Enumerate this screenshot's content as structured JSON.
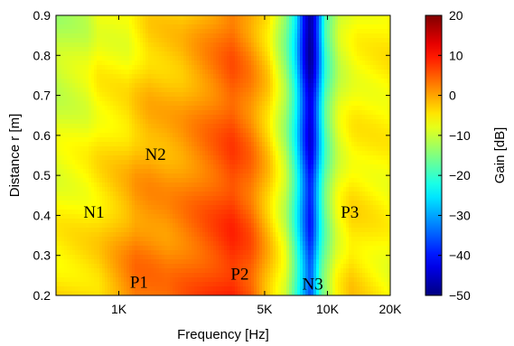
{
  "chart_data": {
    "type": "heatmap",
    "title": "",
    "xlabel": "Frequency [Hz]",
    "ylabel": "Distance r [m]",
    "colorbar_label": "Gain [dB]",
    "x_scale": "log",
    "xlim": [
      500,
      20000
    ],
    "ylim": [
      0.2,
      0.9
    ],
    "x_ticks": [
      {
        "value": 1000,
        "label": "1K"
      },
      {
        "value": 5000,
        "label": "5K"
      },
      {
        "value": 10000,
        "label": "10K"
      },
      {
        "value": 20000,
        "label": "20K"
      }
    ],
    "y_ticks": [
      {
        "value": 0.2,
        "label": "0.2"
      },
      {
        "value": 0.3,
        "label": "0.3"
      },
      {
        "value": 0.4,
        "label": "0.4"
      },
      {
        "value": 0.5,
        "label": "0.5"
      },
      {
        "value": 0.6,
        "label": "0.6"
      },
      {
        "value": 0.7,
        "label": "0.7"
      },
      {
        "value": 0.8,
        "label": "0.8"
      },
      {
        "value": 0.9,
        "label": "0.9"
      }
    ],
    "colorbar_range": [
      -50,
      20
    ],
    "colorbar_ticks": [
      {
        "value": 20,
        "label": "20"
      },
      {
        "value": 10,
        "label": "10"
      },
      {
        "value": 0,
        "label": "0"
      },
      {
        "value": -10,
        "label": "−10"
      },
      {
        "value": -20,
        "label": "−20"
      },
      {
        "value": -30,
        "label": "−30"
      },
      {
        "value": -40,
        "label": "−40"
      },
      {
        "value": -50,
        "label": "−50"
      }
    ],
    "colormap": "jet",
    "gain_profile_at_r_0_9": [
      {
        "freq": 500,
        "gain": -12
      },
      {
        "freq": 700,
        "gain": -10
      },
      {
        "freq": 800,
        "gain": -7
      },
      {
        "freq": 1100,
        "gain": -8
      },
      {
        "freq": 1400,
        "gain": -4
      },
      {
        "freq": 2000,
        "gain": -3
      },
      {
        "freq": 2800,
        "gain": 1
      },
      {
        "freq": 3500,
        "gain": 4
      },
      {
        "freq": 4200,
        "gain": 1
      },
      {
        "freq": 5200,
        "gain": -4
      },
      {
        "freq": 6300,
        "gain": -15
      },
      {
        "freq": 7000,
        "gain": -25
      },
      {
        "freq": 7800,
        "gain": -44
      },
      {
        "freq": 8300,
        "gain": -50
      },
      {
        "freq": 8800,
        "gain": -42
      },
      {
        "freq": 9800,
        "gain": -20
      },
      {
        "freq": 11500,
        "gain": -10
      },
      {
        "freq": 14000,
        "gain": -7
      },
      {
        "freq": 20000,
        "gain": -5
      }
    ],
    "gain_profile_at_r_0_2": [
      {
        "freq": 500,
        "gain": -4
      },
      {
        "freq": 800,
        "gain": -3
      },
      {
        "freq": 1200,
        "gain": 4
      },
      {
        "freq": 1700,
        "gain": 3
      },
      {
        "freq": 2500,
        "gain": 6
      },
      {
        "freq": 3500,
        "gain": 9
      },
      {
        "freq": 4300,
        "gain": 6
      },
      {
        "freq": 5000,
        "gain": 0
      },
      {
        "freq": 6300,
        "gain": -8
      },
      {
        "freq": 7000,
        "gain": -18
      },
      {
        "freq": 7800,
        "gain": -30
      },
      {
        "freq": 8300,
        "gain": -36
      },
      {
        "freq": 9300,
        "gain": -18
      },
      {
        "freq": 11000,
        "gain": -7
      },
      {
        "freq": 13000,
        "gain": -3
      },
      {
        "freq": 20000,
        "gain": -7
      }
    ],
    "annotations": [
      {
        "text": "N1",
        "freq": 760,
        "r": 0.41
      },
      {
        "text": "N2",
        "freq": 1500,
        "r": 0.555
      },
      {
        "text": "P1",
        "freq": 1250,
        "r": 0.235
      },
      {
        "text": "P2",
        "freq": 3800,
        "r": 0.255
      },
      {
        "text": "N3",
        "freq": 8500,
        "r": 0.23
      },
      {
        "text": "P3",
        "freq": 12800,
        "r": 0.41
      }
    ]
  }
}
